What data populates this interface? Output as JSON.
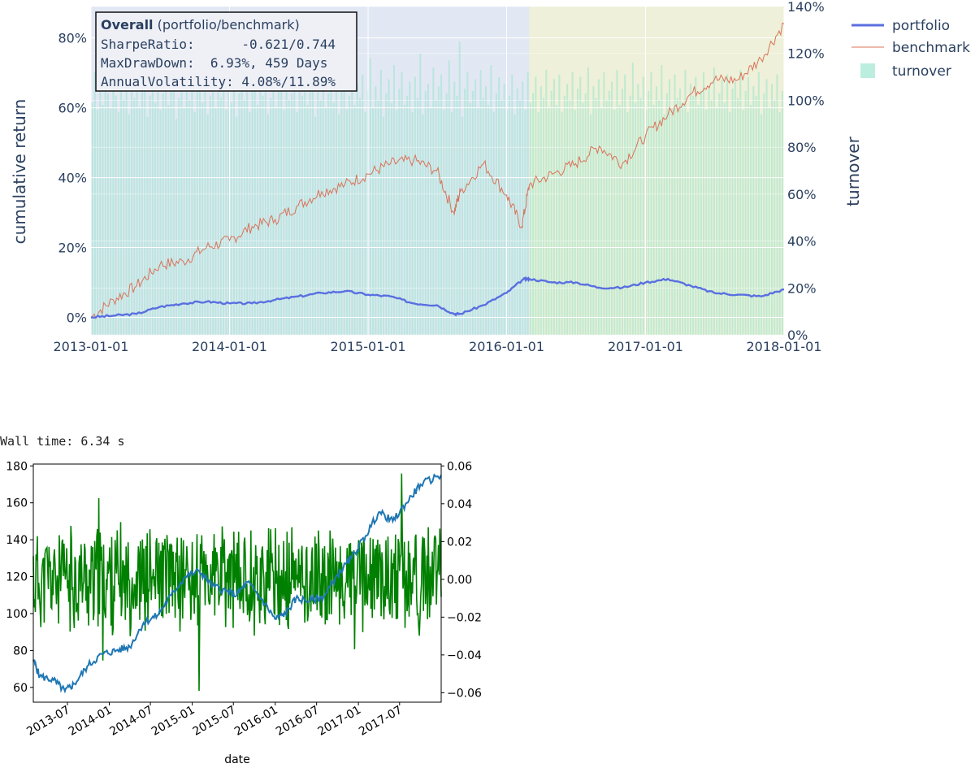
{
  "chart_data": [
    {
      "type": "line",
      "title": "",
      "xlabel": "",
      "ylabel": "cumulative return",
      "y2label": "turnover",
      "x_ticks": [
        "2013-01-01",
        "2014-01-01",
        "2015-01-01",
        "2016-01-01",
        "2017-01-01",
        "2018-01-01"
      ],
      "xlim": [
        "2013-01-01",
        "2018-01-01"
      ],
      "ylim": [
        -0.05,
        0.89
      ],
      "y_ticks": [
        "0%",
        "20%",
        "40%",
        "60%",
        "80%"
      ],
      "y2lim": [
        0,
        1.4
      ],
      "y2_ticks": [
        "0%",
        "20%",
        "40%",
        "60%",
        "80%",
        "100%",
        "120%",
        "140%"
      ],
      "shaded_regions": [
        {
          "start": "2013-01-01",
          "end": "2016-03-01",
          "color": "#e2e8f3"
        },
        {
          "start": "2016-03-01",
          "end": "2017-12-31",
          "color": "#eef0d9"
        }
      ],
      "legend": {
        "placement": "top-right",
        "entries": [
          "portfolio",
          "benchmark",
          "turnover"
        ]
      },
      "annotation": {
        "line1_bold": "Overall",
        "line1_rest": " (portfolio/benchmark)",
        "line2": "SharpeRatio:      -0.621/0.744",
        "line3": "MaxDrawDown:  6.93%, 459 Days",
        "line4": "AnnualVolatility: 4.08%/11.89%"
      },
      "series": [
        {
          "name": "portfolio",
          "color": "#5a6fe0",
          "x": [
            "2013-01-01",
            "2013-03-01",
            "2013-05-01",
            "2013-07-01",
            "2013-09-01",
            "2013-11-01",
            "2014-01-01",
            "2014-03-01",
            "2014-05-01",
            "2014-07-01",
            "2014-09-01",
            "2014-11-01",
            "2015-01-01",
            "2015-03-01",
            "2015-05-01",
            "2015-07-01",
            "2015-08-15",
            "2015-09-01",
            "2015-11-01",
            "2016-01-01",
            "2016-02-15",
            "2016-03-01",
            "2016-05-01",
            "2016-07-01",
            "2016-09-01",
            "2016-11-01",
            "2017-01-01",
            "2017-03-01",
            "2017-05-01",
            "2017-07-01",
            "2017-09-01",
            "2017-11-01",
            "2018-01-01"
          ],
          "y": [
            0.0,
            0.005,
            0.01,
            0.03,
            0.04,
            0.045,
            0.04,
            0.04,
            0.05,
            0.06,
            0.07,
            0.075,
            0.065,
            0.06,
            0.04,
            0.035,
            0.01,
            0.01,
            0.035,
            0.07,
            0.11,
            0.11,
            0.1,
            0.1,
            0.085,
            0.085,
            0.1,
            0.11,
            0.09,
            0.07,
            0.065,
            0.06,
            0.08
          ]
        },
        {
          "name": "benchmark",
          "color": "#d9735a",
          "x": [
            "2013-01-01",
            "2013-03-01",
            "2013-05-01",
            "2013-07-01",
            "2013-09-01",
            "2013-11-01",
            "2014-01-01",
            "2014-03-01",
            "2014-05-01",
            "2014-07-01",
            "2014-09-01",
            "2014-11-01",
            "2015-01-01",
            "2015-03-01",
            "2015-05-01",
            "2015-07-01",
            "2015-08-15",
            "2015-09-01",
            "2015-11-01",
            "2016-01-01",
            "2016-02-10",
            "2016-03-01",
            "2016-05-01",
            "2016-07-01",
            "2016-09-01",
            "2016-11-01",
            "2017-01-01",
            "2017-03-01",
            "2017-05-01",
            "2017-07-01",
            "2017-09-01",
            "2017-11-01",
            "2018-01-01"
          ],
          "y": [
            0.0,
            0.05,
            0.09,
            0.15,
            0.16,
            0.2,
            0.22,
            0.26,
            0.28,
            0.32,
            0.36,
            0.38,
            0.41,
            0.44,
            0.45,
            0.42,
            0.3,
            0.36,
            0.44,
            0.35,
            0.26,
            0.38,
            0.41,
            0.44,
            0.49,
            0.44,
            0.52,
            0.58,
            0.64,
            0.68,
            0.68,
            0.74,
            0.84
          ]
        }
      ],
      "turnover": {
        "name": "turnover",
        "color": "#8fe3c9",
        "period": "weekly",
        "start": "2013-01-01",
        "end": "2017-12-31",
        "values": [
          0.99,
          1.12,
          0.96,
          1.05,
          0.98,
          1.09,
          1.03,
          0.97,
          1.14,
          1.02,
          0.95,
          1.08,
          1.0,
          1.11,
          0.94,
          1.06,
          1.01,
          1.18,
          0.97,
          1.04,
          1.1,
          0.93,
          1.02,
          1.07,
          0.99,
          1.15,
          0.96,
          1.03,
          1.09,
          0.98,
          1.05,
          1.21,
          0.92,
          1.01,
          1.12,
          0.97,
          1.06,
          1.0,
          1.13,
          0.95,
          1.04,
          1.08,
          0.99,
          1.16,
          0.94,
          1.02,
          1.1,
          0.97,
          1.05,
          1.01,
          1.14,
          0.96,
          1.07,
          0.99,
          1.11,
          0.93,
          1.03,
          1.09,
          1.0,
          1.17,
          0.95,
          1.04,
          1.12,
          0.98,
          1.06,
          1.02,
          1.19,
          0.94,
          1.01,
          1.1,
          0.97,
          1.05,
          1.08,
          0.96,
          1.13,
          1.0,
          1.03,
          1.15,
          0.95,
          1.07,
          1.02,
          1.11,
          0.98,
          1.04,
          1.24,
          0.93,
          1.06,
          1.0,
          1.12,
          0.97,
          1.03,
          1.09,
          0.99,
          1.16,
          0.94,
          1.05,
          1.1,
          0.96,
          1.02,
          1.14,
          0.98,
          1.07,
          1.01,
          1.11,
          0.95,
          1.04,
          1.18,
          0.97,
          1.06,
          1.0,
          1.13,
          0.93,
          1.03,
          1.09,
          0.99,
          1.15,
          0.96,
          1.05,
          1.12,
          0.98,
          1.02,
          1.08,
          0.95,
          1.1,
          1.01,
          1.2,
          0.94,
          1.04,
          1.07,
          0.97,
          1.14,
          1.0,
          1.06,
          1.11,
          0.96,
          1.03,
          1.17,
          0.95,
          1.08,
          1.02,
          1.25,
          0.93,
          1.05,
          1.12,
          0.99,
          1.04,
          1.09,
          0.97,
          1.13,
          1.01,
          1.06,
          0.98,
          1.15,
          0.95,
          1.03,
          1.1,
          1.0,
          1.07,
          0.96,
          1.02,
          1.11,
          0.94,
          1.05,
          1.0,
          1.08,
          0.96,
          1.12,
          0.99,
          1.03,
          1.1,
          0.95,
          1.06,
          1.01,
          1.13,
          0.97,
          1.04,
          1.09,
          0.98,
          1.11,
          0.95,
          1.02,
          1.07,
          1.0,
          1.12,
          0.96,
          1.05,
          1.1,
          0.99,
          1.03,
          1.14,
          0.94,
          1.06,
          1.01,
          1.09,
          0.97,
          1.12,
          1.0,
          1.04,
          1.08,
          0.96,
          1.13,
          0.98,
          1.05,
          1.11,
          0.95,
          1.02,
          1.16,
          0.99,
          1.07,
          1.01,
          1.1,
          0.96,
          1.04,
          1.12,
          0.98,
          1.06,
          1.0,
          1.15,
          0.94,
          1.03,
          1.09,
          0.97,
          1.11,
          1.01,
          1.05,
          0.99,
          1.13,
          0.95,
          1.07,
          1.02,
          1.1,
          0.98,
          1.04,
          1.12,
          0.96,
          1.06,
          1.0,
          1.14,
          0.97,
          1.03,
          1.09,
          0.99,
          1.11,
          0.95,
          1.05,
          1.08,
          1.01,
          1.13,
          0.96,
          1.04,
          1.1,
          0.98,
          1.06,
          1.02,
          1.12,
          0.94,
          1.03,
          1.09,
          0.97,
          1.07,
          1.0,
          1.11,
          0.95,
          1.04
        ]
      }
    },
    {
      "type": "line",
      "title": "",
      "xlabel": "date",
      "ylabel": "",
      "x_ticks": [
        "2013-07",
        "2014-01",
        "2014-07",
        "2015-01",
        "2015-07",
        "2016-01",
        "2016-07",
        "2017-01",
        "2017-07"
      ],
      "xlim": [
        "2013-02-01",
        "2017-12-31"
      ],
      "ylim": [
        52,
        181
      ],
      "y_ticks": [
        60,
        80,
        100,
        120,
        140,
        160,
        180
      ],
      "y2lim": [
        -0.065,
        0.061
      ],
      "y2_ticks": [
        "−0.06",
        "−0.04",
        "−0.02",
        "0.00",
        "0.02",
        "0.04",
        "0.06"
      ],
      "series": [
        {
          "name": "",
          "color": "#1f77b4",
          "axis": "left",
          "x": [
            "2013-02-01",
            "2013-03-01",
            "2013-05-01",
            "2013-06-20",
            "2013-08-01",
            "2013-10-01",
            "2013-12-01",
            "2014-02-01",
            "2014-04-01",
            "2014-06-01",
            "2014-08-01",
            "2014-10-01",
            "2014-12-01",
            "2015-02-01",
            "2015-04-01",
            "2015-06-01",
            "2015-07-15",
            "2015-09-01",
            "2015-11-01",
            "2016-01-01",
            "2016-02-15",
            "2016-04-01",
            "2016-06-01",
            "2016-08-01",
            "2016-10-01",
            "2016-12-01",
            "2017-02-01",
            "2017-04-01",
            "2017-06-01",
            "2017-08-01",
            "2017-10-01",
            "2017-12-31"
          ],
          "y": [
            75,
            66,
            64,
            58,
            62,
            72,
            78,
            80,
            82,
            95,
            99,
            110,
            120,
            123,
            115,
            112,
            110,
            117,
            108,
            97,
            100,
            108,
            107,
            109,
            121,
            130,
            142,
            155,
            150,
            160,
            170,
            175
          ]
        },
        {
          "name": "",
          "color": "#008000",
          "axis": "right",
          "x_start": "2013-02-01",
          "x_end": "2017-12-31",
          "spikes": [
            {
              "x": "2013-11-15",
              "y": 0.043
            },
            {
              "x": "2013-12-05",
              "y": -0.043
            },
            {
              "x": "2015-02-01",
              "y": -0.059
            },
            {
              "x": "2016-02-25",
              "y": -0.024
            },
            {
              "x": "2016-12-15",
              "y": -0.037
            },
            {
              "x": "2017-07-10",
              "y": 0.056
            }
          ]
        }
      ]
    }
  ],
  "wall_time": "Wall time: 6.34 s"
}
